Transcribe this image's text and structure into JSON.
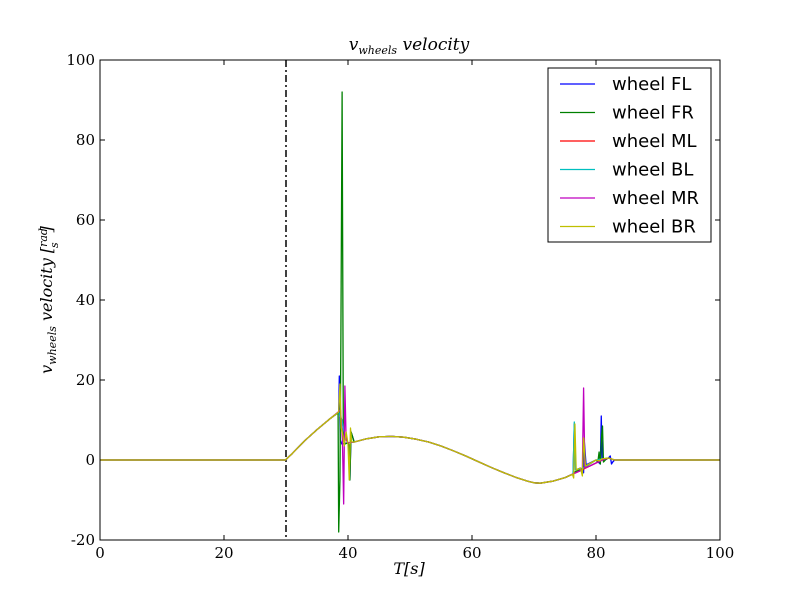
{
  "chart_data": {
    "type": "line",
    "title": "v_wheels velocity",
    "xlabel": "T[s]",
    "ylabel": "v_wheels velocity [rad/s]",
    "xlim": [
      0,
      100
    ],
    "ylim": [
      -20,
      100
    ],
    "xticks": [
      0,
      20,
      40,
      60,
      80,
      100
    ],
    "yticks": [
      -20,
      0,
      20,
      40,
      60,
      80,
      100
    ],
    "grid": false,
    "legend_position": "top-right",
    "annotations": [
      {
        "type": "vertical-dashed-line",
        "x": 30,
        "color": "#000000"
      }
    ],
    "series": [
      {
        "name": "wheel FL",
        "color": "#0000ff",
        "points": [
          [
            0,
            0
          ],
          [
            29.9,
            0
          ],
          [
            31,
            1.6
          ],
          [
            33,
            4.8
          ],
          [
            35,
            7.6
          ],
          [
            37,
            10.2
          ],
          [
            38.5,
            12
          ],
          [
            38.6,
            21
          ],
          [
            38.75,
            5
          ],
          [
            39,
            4
          ],
          [
            40,
            4.3
          ],
          [
            40.2,
            3.5
          ],
          [
            40.3,
            -5
          ],
          [
            40.5,
            7
          ],
          [
            41,
            4.5
          ],
          [
            43,
            5.3
          ],
          [
            45,
            5.8
          ],
          [
            47,
            5.9
          ],
          [
            49,
            5.7
          ],
          [
            51,
            5.2
          ],
          [
            53,
            4.5
          ],
          [
            55,
            3.5
          ],
          [
            57,
            2.3
          ],
          [
            59,
            1
          ],
          [
            61,
            -0.4
          ],
          [
            63,
            -1.8
          ],
          [
            65,
            -3.1
          ],
          [
            67,
            -4.3
          ],
          [
            69,
            -5.3
          ],
          [
            70,
            -5.7
          ],
          [
            71,
            -5.8
          ],
          [
            73,
            -5.3
          ],
          [
            75,
            -4.4
          ],
          [
            76.3,
            -3.5
          ],
          [
            76.5,
            9
          ],
          [
            76.7,
            -2.5
          ],
          [
            77.5,
            -2
          ],
          [
            78,
            -3.2
          ],
          [
            78.1,
            5
          ],
          [
            78.4,
            -1.2
          ],
          [
            80,
            0
          ],
          [
            80.7,
            -1
          ],
          [
            80.85,
            11
          ],
          [
            81,
            0
          ],
          [
            82,
            0.5
          ],
          [
            82.3,
            1
          ],
          [
            82.5,
            -1
          ],
          [
            82.7,
            -0.5
          ],
          [
            83,
            0
          ],
          [
            83.2,
            0
          ],
          [
            100,
            0
          ]
        ]
      },
      {
        "name": "wheel FR",
        "color": "#008000",
        "points": [
          [
            0,
            0
          ],
          [
            29.9,
            0
          ],
          [
            31,
            1.6
          ],
          [
            33,
            4.8
          ],
          [
            35,
            7.6
          ],
          [
            37,
            10.2
          ],
          [
            38.4,
            11.8
          ],
          [
            38.5,
            -18
          ],
          [
            38.7,
            -5
          ],
          [
            38.85,
            30
          ],
          [
            39.05,
            92
          ],
          [
            39.25,
            5
          ],
          [
            39.5,
            4
          ],
          [
            40,
            4.3
          ],
          [
            40.2,
            3.5
          ],
          [
            40.3,
            -5
          ],
          [
            40.5,
            7
          ],
          [
            41,
            4.5
          ],
          [
            43,
            5.3
          ],
          [
            45,
            5.8
          ],
          [
            47,
            5.9
          ],
          [
            49,
            5.7
          ],
          [
            51,
            5.2
          ],
          [
            53,
            4.5
          ],
          [
            55,
            3.5
          ],
          [
            57,
            2.3
          ],
          [
            59,
            1
          ],
          [
            61,
            -0.4
          ],
          [
            63,
            -1.8
          ],
          [
            65,
            -3.1
          ],
          [
            67,
            -4.3
          ],
          [
            69,
            -5.3
          ],
          [
            70,
            -5.7
          ],
          [
            71,
            -5.8
          ],
          [
            73,
            -5.3
          ],
          [
            75,
            -4.4
          ],
          [
            76.3,
            -3.5
          ],
          [
            76.6,
            -3
          ],
          [
            78,
            -2
          ],
          [
            80,
            0
          ],
          [
            80.3,
            -0.5
          ],
          [
            80.5,
            2
          ],
          [
            80.7,
            -1
          ],
          [
            80.9,
            6
          ],
          [
            81.05,
            8.5
          ],
          [
            81.2,
            -0.5
          ],
          [
            81.5,
            0
          ],
          [
            82,
            0.5
          ],
          [
            83,
            0
          ],
          [
            83.2,
            0
          ],
          [
            100,
            0
          ]
        ]
      },
      {
        "name": "wheel ML",
        "color": "#ff0000",
        "points": [
          [
            0,
            0
          ],
          [
            29.9,
            0
          ],
          [
            31,
            1.6
          ],
          [
            33,
            4.8
          ],
          [
            35,
            7.6
          ],
          [
            37,
            10.2
          ],
          [
            38.5,
            12
          ],
          [
            39,
            10
          ],
          [
            39.5,
            6
          ],
          [
            40,
            4.3
          ],
          [
            41,
            4.5
          ],
          [
            43,
            5.3
          ],
          [
            45,
            5.8
          ],
          [
            47,
            5.9
          ],
          [
            49,
            5.7
          ],
          [
            51,
            5.2
          ],
          [
            53,
            4.5
          ],
          [
            55,
            3.5
          ],
          [
            57,
            2.3
          ],
          [
            59,
            1
          ],
          [
            61,
            -0.4
          ],
          [
            63,
            -1.8
          ],
          [
            65,
            -3.1
          ],
          [
            67,
            -4.3
          ],
          [
            69,
            -5.3
          ],
          [
            70,
            -5.7
          ],
          [
            71,
            -5.8
          ],
          [
            73,
            -5.3
          ],
          [
            75,
            -4.4
          ],
          [
            77,
            -3
          ],
          [
            79,
            -1.5
          ],
          [
            81,
            0
          ],
          [
            82,
            0.5
          ],
          [
            83,
            0
          ],
          [
            100,
            0
          ]
        ]
      },
      {
        "name": "wheel BL",
        "color": "#00bfbf",
        "points": [
          [
            0,
            0
          ],
          [
            29.9,
            0
          ],
          [
            31,
            1.6
          ],
          [
            33,
            4.8
          ],
          [
            35,
            7.6
          ],
          [
            37,
            10.2
          ],
          [
            38.5,
            12
          ],
          [
            39,
            10
          ],
          [
            39.5,
            6
          ],
          [
            40,
            4.3
          ],
          [
            41,
            4.5
          ],
          [
            43,
            5.3
          ],
          [
            45,
            5.8
          ],
          [
            47,
            5.9
          ],
          [
            49,
            5.7
          ],
          [
            51,
            5.2
          ],
          [
            53,
            4.5
          ],
          [
            55,
            3.5
          ],
          [
            57,
            2.3
          ],
          [
            59,
            1
          ],
          [
            61,
            -0.4
          ],
          [
            63,
            -1.8
          ],
          [
            65,
            -3.1
          ],
          [
            67,
            -4.3
          ],
          [
            69,
            -5.3
          ],
          [
            70,
            -5.7
          ],
          [
            71,
            -5.8
          ],
          [
            73,
            -5.3
          ],
          [
            75,
            -4.4
          ],
          [
            76.3,
            -3.5
          ],
          [
            76.5,
            9.5
          ],
          [
            76.7,
            -2.5
          ],
          [
            78,
            -2
          ],
          [
            80,
            0
          ],
          [
            82,
            0.5
          ],
          [
            83,
            0
          ],
          [
            100,
            0
          ]
        ]
      },
      {
        "name": "wheel MR",
        "color": "#bf00bf",
        "points": [
          [
            0,
            0
          ],
          [
            29.9,
            0
          ],
          [
            31,
            1.6
          ],
          [
            33,
            4.8
          ],
          [
            35,
            7.6
          ],
          [
            37,
            10.2
          ],
          [
            38.8,
            12.5
          ],
          [
            39.1,
            5
          ],
          [
            39.3,
            -11
          ],
          [
            39.5,
            18.5
          ],
          [
            39.7,
            5
          ],
          [
            40,
            4.3
          ],
          [
            41,
            4.5
          ],
          [
            43,
            5.3
          ],
          [
            45,
            5.8
          ],
          [
            47,
            5.9
          ],
          [
            49,
            5.7
          ],
          [
            51,
            5.2
          ],
          [
            53,
            4.5
          ],
          [
            55,
            3.5
          ],
          [
            57,
            2.3
          ],
          [
            59,
            1
          ],
          [
            61,
            -0.4
          ],
          [
            63,
            -1.8
          ],
          [
            65,
            -3.1
          ],
          [
            67,
            -4.3
          ],
          [
            69,
            -5.3
          ],
          [
            70,
            -5.7
          ],
          [
            71,
            -5.8
          ],
          [
            73,
            -5.3
          ],
          [
            75,
            -4.4
          ],
          [
            77,
            -3
          ],
          [
            77.8,
            -2.5
          ],
          [
            78,
            18
          ],
          [
            78.2,
            -2
          ],
          [
            79,
            -1.5
          ],
          [
            81,
            0
          ],
          [
            82,
            0.5
          ],
          [
            83,
            0
          ],
          [
            100,
            0
          ]
        ]
      },
      {
        "name": "wheel BR",
        "color": "#bfbf00",
        "points": [
          [
            0,
            0
          ],
          [
            29.9,
            0
          ],
          [
            31,
            1.6
          ],
          [
            33,
            4.8
          ],
          [
            35,
            7.6
          ],
          [
            37,
            10.2
          ],
          [
            38.5,
            12
          ],
          [
            38.7,
            19
          ],
          [
            38.9,
            8
          ],
          [
            39.2,
            6
          ],
          [
            39.4,
            3.5
          ],
          [
            39.7,
            7
          ],
          [
            40,
            4
          ],
          [
            40.2,
            -5
          ],
          [
            40.4,
            8
          ],
          [
            40.6,
            4.5
          ],
          [
            41,
            4.5
          ],
          [
            43,
            5.3
          ],
          [
            45,
            5.8
          ],
          [
            47,
            5.9
          ],
          [
            49,
            5.7
          ],
          [
            51,
            5.2
          ],
          [
            53,
            4.5
          ],
          [
            55,
            3.5
          ],
          [
            57,
            2.3
          ],
          [
            59,
            1
          ],
          [
            61,
            -0.4
          ],
          [
            63,
            -1.8
          ],
          [
            65,
            -3.1
          ],
          [
            67,
            -4.3
          ],
          [
            69,
            -5.3
          ],
          [
            70,
            -5.7
          ],
          [
            71,
            -5.8
          ],
          [
            73,
            -5.3
          ],
          [
            75,
            -4.4
          ],
          [
            76.2,
            -3.6
          ],
          [
            76.4,
            -4.5
          ],
          [
            76.6,
            9
          ],
          [
            76.8,
            -2.5
          ],
          [
            77.5,
            -2
          ],
          [
            77.8,
            -4
          ],
          [
            78,
            5.5
          ],
          [
            78.3,
            -1.5
          ],
          [
            80,
            0
          ],
          [
            80.5,
            -0.2
          ],
          [
            81,
            0.3
          ],
          [
            82,
            0.5
          ],
          [
            83,
            0
          ],
          [
            100,
            0
          ]
        ]
      }
    ]
  }
}
